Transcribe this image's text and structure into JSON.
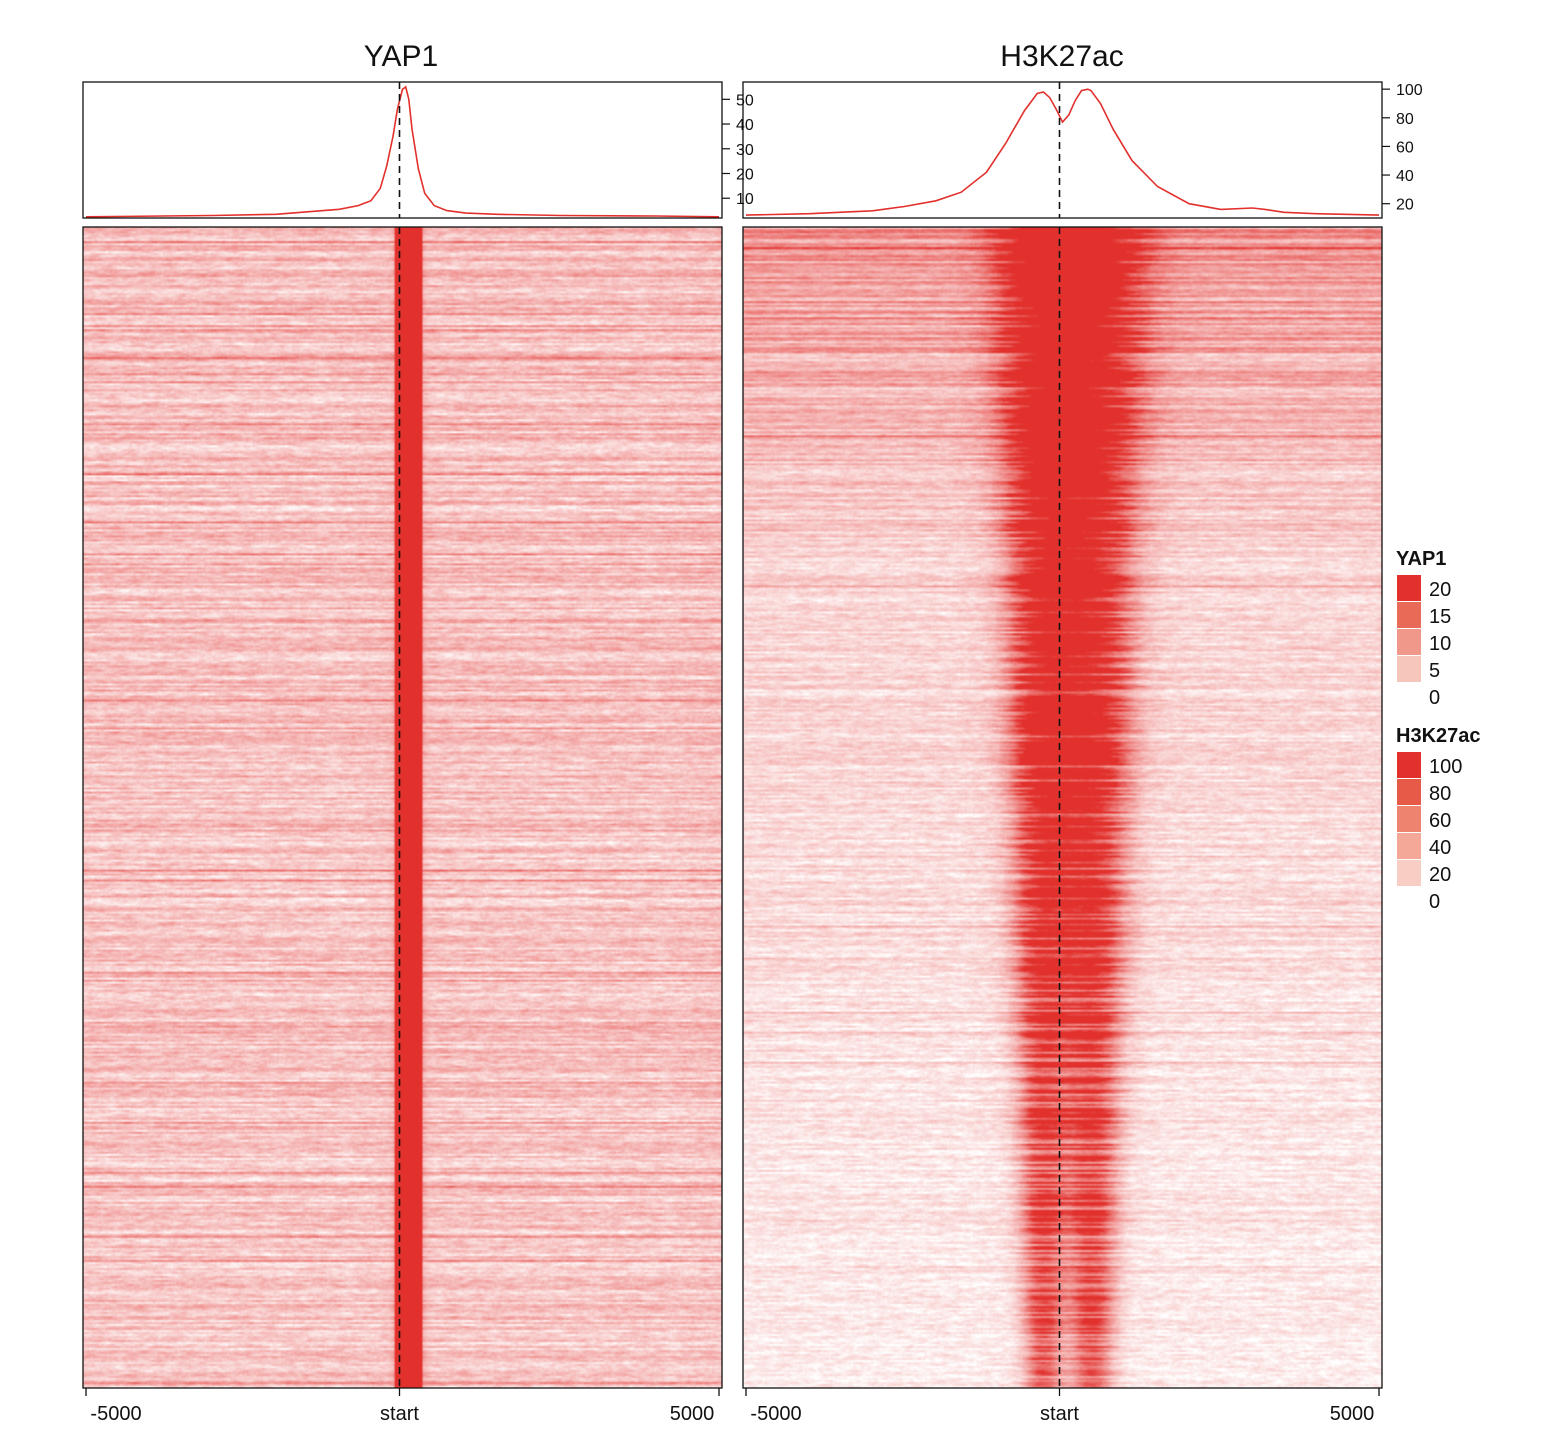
{
  "chart_data": {
    "type": "heatmap",
    "panels": [
      {
        "title": "YAP1",
        "x_ticks": [
          "-5000",
          "start",
          "5000"
        ],
        "x_range": [
          -5000,
          5000
        ],
        "profile": {
          "type": "line",
          "y_ticks": [
            10,
            20,
            30,
            40,
            50
          ],
          "y_range": [
            2,
            57
          ],
          "x": [
            -5000,
            -3000,
            -2000,
            -1500,
            -1000,
            -700,
            -500,
            -350,
            -250,
            -150,
            -80,
            0,
            50,
            100,
            150,
            250,
            350,
            500,
            700,
            1000,
            1500,
            2500,
            4000,
            5000
          ],
          "values": [
            2.5,
            3,
            3.5,
            4.5,
            5.5,
            7,
            9,
            14,
            23,
            35,
            46,
            54,
            55,
            50,
            38,
            22,
            12,
            7,
            5,
            4,
            3.5,
            3,
            2.8,
            2.5
          ]
        },
        "heatmap": {
          "color_max": 20,
          "band_center": 100,
          "band_halfwidth": 220,
          "background_level": 5
        }
      },
      {
        "title": "H3K27ac",
        "x_ticks": [
          "-5000",
          "start",
          "5000"
        ],
        "x_range": [
          -5000,
          5000
        ],
        "profile": {
          "type": "line",
          "y_ticks": [
            20,
            40,
            60,
            80,
            100
          ],
          "y_range": [
            10,
            105
          ],
          "x": [
            -5000,
            -4000,
            -3000,
            -2500,
            -2000,
            -1600,
            -1200,
            -900,
            -600,
            -400,
            -300,
            -200,
            -100,
            0,
            100,
            200,
            300,
            400,
            450,
            600,
            800,
            1100,
            1500,
            2000,
            2500,
            3000,
            3200,
            3500,
            4000,
            5000
          ],
          "values": [
            12,
            13,
            15,
            18,
            22,
            28,
            42,
            62,
            85,
            97,
            98,
            94,
            86,
            77,
            82,
            92,
            99,
            100,
            99,
            90,
            72,
            50,
            32,
            20,
            16,
            17,
            16,
            14,
            13,
            12
          ]
        },
        "heatmap": {
          "color_max": 100,
          "peaks": [
            -300,
            450
          ],
          "background_level": 8
        }
      }
    ],
    "legends": [
      {
        "title": "YAP1",
        "labels": [
          "20",
          "15",
          "10",
          "5",
          "0"
        ],
        "colors": [
          "#e2302c",
          "#ea6a58",
          "#f0998a",
          "#f6c6bb",
          "#ffffff"
        ]
      },
      {
        "title": "H3K27ac",
        "labels": [
          "100",
          "80",
          "60",
          "40",
          "20",
          "0"
        ],
        "colors": [
          "#e2302c",
          "#e85a48",
          "#ee8370",
          "#f3a898",
          "#f8cec4",
          "#ffffff"
        ]
      }
    ],
    "colors": {
      "line": "#e2302c",
      "high": "#e2302c",
      "low": "#ffffff"
    }
  }
}
